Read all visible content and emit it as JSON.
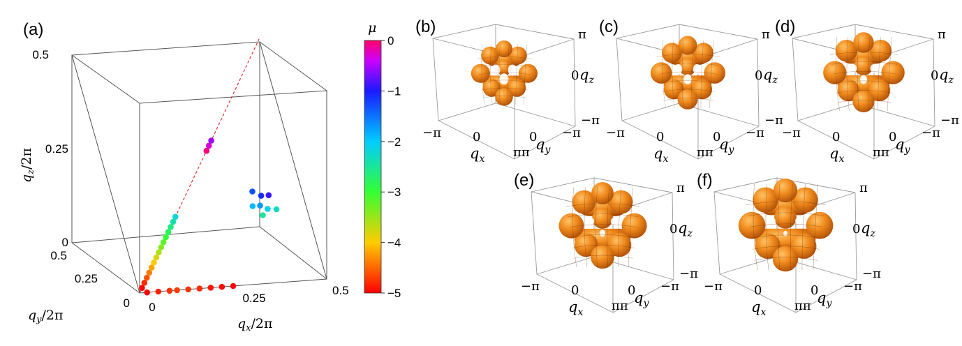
{
  "panel_a": {
    "label": "(a)",
    "z_ticks": [
      "0.5",
      "0.25",
      "0"
    ],
    "y_ticks": [
      "0.5",
      "0.25",
      "0"
    ],
    "x_ticks": [
      "0",
      "0.25",
      "0.5"
    ],
    "xlabel": "q",
    "xlabel_sub": "x",
    "xlabel_tail": "/2π",
    "ylabel": "q",
    "ylabel_sub": "y",
    "ylabel_tail": "/2π",
    "zlabel": "q",
    "zlabel_sub": "z",
    "zlabel_tail": "/2π"
  },
  "colorbar": {
    "title": "μ",
    "ticks": [
      "0",
      "−1",
      "−2",
      "−3",
      "−4",
      "−5"
    ],
    "min": -5,
    "max": 0
  },
  "chart_data": {
    "type": "scatter",
    "x_range": [
      0,
      0.5
    ],
    "y_range": [
      0,
      0.5
    ],
    "z_range": [
      0,
      0.5
    ],
    "diagonal_reference": {
      "from": [
        0,
        0,
        0
      ],
      "to": [
        0.5,
        0.5,
        0.5
      ],
      "style": "dashed",
      "color": "#e03030"
    },
    "series": [
      {
        "points": [
          {
            "x": 0.02,
            "y": 0.0,
            "z": 0.0,
            "mu": -5.0
          },
          {
            "x": 0.05,
            "y": 0.0,
            "z": 0.0,
            "mu": -4.85
          },
          {
            "x": 0.08,
            "y": 0.0,
            "z": 0.0,
            "mu": -4.75
          },
          {
            "x": 0.1,
            "y": 0.0,
            "z": 0.0,
            "mu": -4.7
          },
          {
            "x": 0.13,
            "y": 0.0,
            "z": 0.0,
            "mu": -4.75
          },
          {
            "x": 0.16,
            "y": 0.0,
            "z": 0.0,
            "mu": -4.8
          },
          {
            "x": 0.19,
            "y": 0.0,
            "z": 0.0,
            "mu": -4.9
          },
          {
            "x": 0.22,
            "y": 0.0,
            "z": 0.0,
            "mu": -4.95
          },
          {
            "x": 0.25,
            "y": 0.0,
            "z": 0.0,
            "mu": -5.0
          },
          {
            "x": 0.01,
            "y": 0.01,
            "z": 0.01,
            "mu": -5.0
          },
          {
            "x": 0.02,
            "y": 0.02,
            "z": 0.02,
            "mu": -4.8
          },
          {
            "x": 0.03,
            "y": 0.03,
            "z": 0.03,
            "mu": -4.6
          },
          {
            "x": 0.04,
            "y": 0.04,
            "z": 0.04,
            "mu": -4.4
          },
          {
            "x": 0.05,
            "y": 0.05,
            "z": 0.05,
            "mu": -4.2
          },
          {
            "x": 0.06,
            "y": 0.06,
            "z": 0.06,
            "mu": -4.0
          },
          {
            "x": 0.07,
            "y": 0.07,
            "z": 0.07,
            "mu": -3.8
          },
          {
            "x": 0.08,
            "y": 0.08,
            "z": 0.08,
            "mu": -3.6
          },
          {
            "x": 0.09,
            "y": 0.09,
            "z": 0.09,
            "mu": -3.4
          },
          {
            "x": 0.1,
            "y": 0.1,
            "z": 0.1,
            "mu": -3.2
          },
          {
            "x": 0.11,
            "y": 0.11,
            "z": 0.11,
            "mu": -3.0
          },
          {
            "x": 0.12,
            "y": 0.12,
            "z": 0.12,
            "mu": -2.8
          },
          {
            "x": 0.13,
            "y": 0.13,
            "z": 0.13,
            "mu": -2.6
          },
          {
            "x": 0.14,
            "y": 0.14,
            "z": 0.14,
            "mu": -2.4
          },
          {
            "x": 0.15,
            "y": 0.15,
            "z": 0.15,
            "mu": -2.2
          },
          {
            "x": 0.28,
            "y": 0.28,
            "z": 0.28,
            "mu": -0.05
          },
          {
            "x": 0.29,
            "y": 0.29,
            "z": 0.29,
            "mu": -0.3
          },
          {
            "x": 0.3,
            "y": 0.3,
            "z": 0.3,
            "mu": -0.55
          },
          {
            "x": 0.37,
            "y": 0.19,
            "z": 0.19,
            "mu": -1.3
          },
          {
            "x": 0.39,
            "y": 0.18,
            "z": 0.18,
            "mu": -1.1
          },
          {
            "x": 0.41,
            "y": 0.18,
            "z": 0.18,
            "mu": -0.9
          },
          {
            "x": 0.36,
            "y": 0.16,
            "z": 0.16,
            "mu": -1.9
          },
          {
            "x": 0.38,
            "y": 0.16,
            "z": 0.16,
            "mu": -1.7
          },
          {
            "x": 0.4,
            "y": 0.16,
            "z": 0.15,
            "mu": -2.1
          },
          {
            "x": 0.42,
            "y": 0.15,
            "z": 0.15,
            "mu": -2.3
          },
          {
            "x": 0.38,
            "y": 0.14,
            "z": 0.14,
            "mu": -2.5
          }
        ]
      }
    ]
  },
  "surface_panels": [
    {
      "label": "(b)",
      "blob": 0.8
    },
    {
      "label": "(c)",
      "blob": 0.9
    },
    {
      "label": "(d)",
      "blob": 0.98
    },
    {
      "label": "(e)",
      "blob": 1.06
    },
    {
      "label": "(f)",
      "blob": 1.14
    }
  ],
  "surface_ticks": {
    "pi": "π",
    "zero": "0",
    "neg_pi": "−π",
    "pi_pi": "ππ",
    "qx": "q",
    "qx_sub": "x",
    "qy": "q",
    "qy_sub": "y",
    "qz": "q",
    "qz_sub": "z"
  }
}
